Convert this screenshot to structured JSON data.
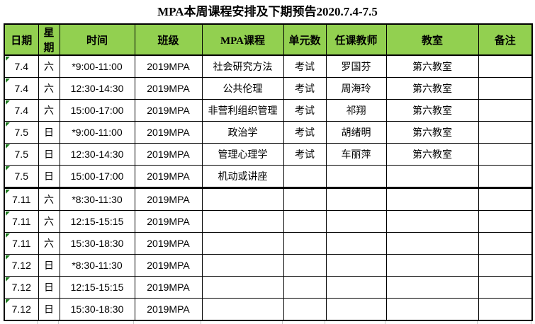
{
  "title": "MPA本周课程安排及下期预告2020.7.4-7.5",
  "colors": {
    "header_bg": "#92d050",
    "grid_border": "#000000",
    "error_indicator": "#1e7a1f"
  },
  "table": {
    "headers": [
      "日期",
      "星期",
      "时间",
      "班级",
      "MPA课程",
      "单元数",
      "任课教师",
      "教室",
      "备注"
    ],
    "section_break_after_row": 6,
    "rows": [
      {
        "date": "7.4",
        "week": "六",
        "time": "*9:00-11:00",
        "class": "2019MPA",
        "course": "社会研究方法",
        "units": "考试",
        "teacher": "罗国芬",
        "room": "第六教室",
        "note": ""
      },
      {
        "date": "7.4",
        "week": "六",
        "time": "12:30-14:30",
        "class": "2019MPA",
        "course": "公共伦理",
        "units": "考试",
        "teacher": "周海玲",
        "room": "第六教室",
        "note": ""
      },
      {
        "date": "7.4",
        "week": "六",
        "time": "15:00-17:00",
        "class": "2019MPA",
        "course": "非营利组织管理",
        "units": "考试",
        "teacher": "祁翔",
        "room": "第六教室",
        "note": ""
      },
      {
        "date": "7.5",
        "week": "日",
        "time": "*9:00-11:00",
        "class": "2019MPA",
        "course": "政治学",
        "units": "考试",
        "teacher": "胡绪明",
        "room": "第六教室",
        "note": ""
      },
      {
        "date": "7.5",
        "week": "日",
        "time": "12:30-14:30",
        "class": "2019MPA",
        "course": "管理心理学",
        "units": "考试",
        "teacher": "车丽萍",
        "room": "第六教室",
        "note": ""
      },
      {
        "date": "7.5",
        "week": "日",
        "time": "15:00-17:00",
        "class": "2019MPA",
        "course": "机动或讲座",
        "units": "",
        "teacher": "",
        "room": "",
        "note": ""
      },
      {
        "date": "7.11",
        "week": "六",
        "time": "*8:30-11:30",
        "class": "2019MPA",
        "course": "",
        "units": "",
        "teacher": "",
        "room": "",
        "note": ""
      },
      {
        "date": "7.11",
        "week": "六",
        "time": "12:15-15:15",
        "class": "2019MPA",
        "course": "",
        "units": "",
        "teacher": "",
        "room": "",
        "note": ""
      },
      {
        "date": "7.11",
        "week": "六",
        "time": "15:30-18:30",
        "class": "2019MPA",
        "course": "",
        "units": "",
        "teacher": "",
        "room": "",
        "note": ""
      },
      {
        "date": "7.12",
        "week": "日",
        "time": "*8:30-11:30",
        "class": "2019MPA",
        "course": "",
        "units": "",
        "teacher": "",
        "room": "",
        "note": ""
      },
      {
        "date": "7.12",
        "week": "日",
        "time": "12:15-15:15",
        "class": "2019MPA",
        "course": "",
        "units": "",
        "teacher": "",
        "room": "",
        "note": ""
      },
      {
        "date": "7.12",
        "week": "日",
        "time": "15:30-18:30",
        "class": "2019MPA",
        "course": "",
        "units": "",
        "teacher": "",
        "room": "",
        "note": ""
      }
    ]
  }
}
